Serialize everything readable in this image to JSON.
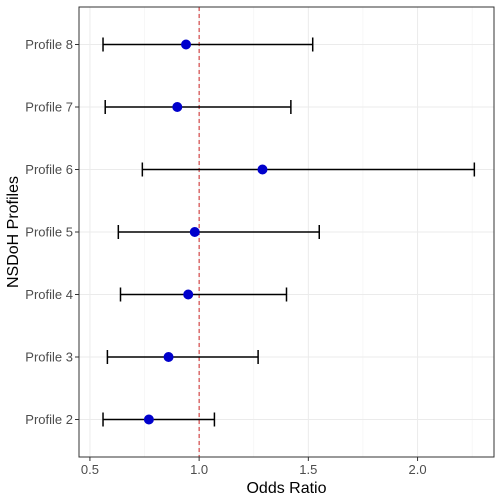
{
  "chart_data": {
    "type": "scatter",
    "subtype": "forest-plot",
    "title": "",
    "xlabel": "Odds Ratio",
    "ylabel": "NSDoH Profiles",
    "xlim": [
      0.45,
      2.35
    ],
    "x_ticks": [
      0.5,
      1.0,
      1.5,
      2.0
    ],
    "x_tick_labels": [
      "0.5",
      "1.0",
      "1.5",
      "2.0"
    ],
    "reference_line": {
      "x": 1.0,
      "style": "dashed",
      "color": "#cc2222"
    },
    "grid": true,
    "legend": "none",
    "point_color": "#0000cc",
    "categories": [
      "Profile 2",
      "Profile 3",
      "Profile 4",
      "Profile 5",
      "Profile 6",
      "Profile 7",
      "Profile 8"
    ],
    "estimates": [
      0.77,
      0.86,
      0.95,
      0.98,
      1.29,
      0.9,
      0.94
    ],
    "lower": [
      0.56,
      0.58,
      0.64,
      0.63,
      0.74,
      0.57,
      0.56
    ],
    "upper": [
      1.07,
      1.27,
      1.4,
      1.55,
      2.26,
      1.42,
      1.52
    ]
  }
}
